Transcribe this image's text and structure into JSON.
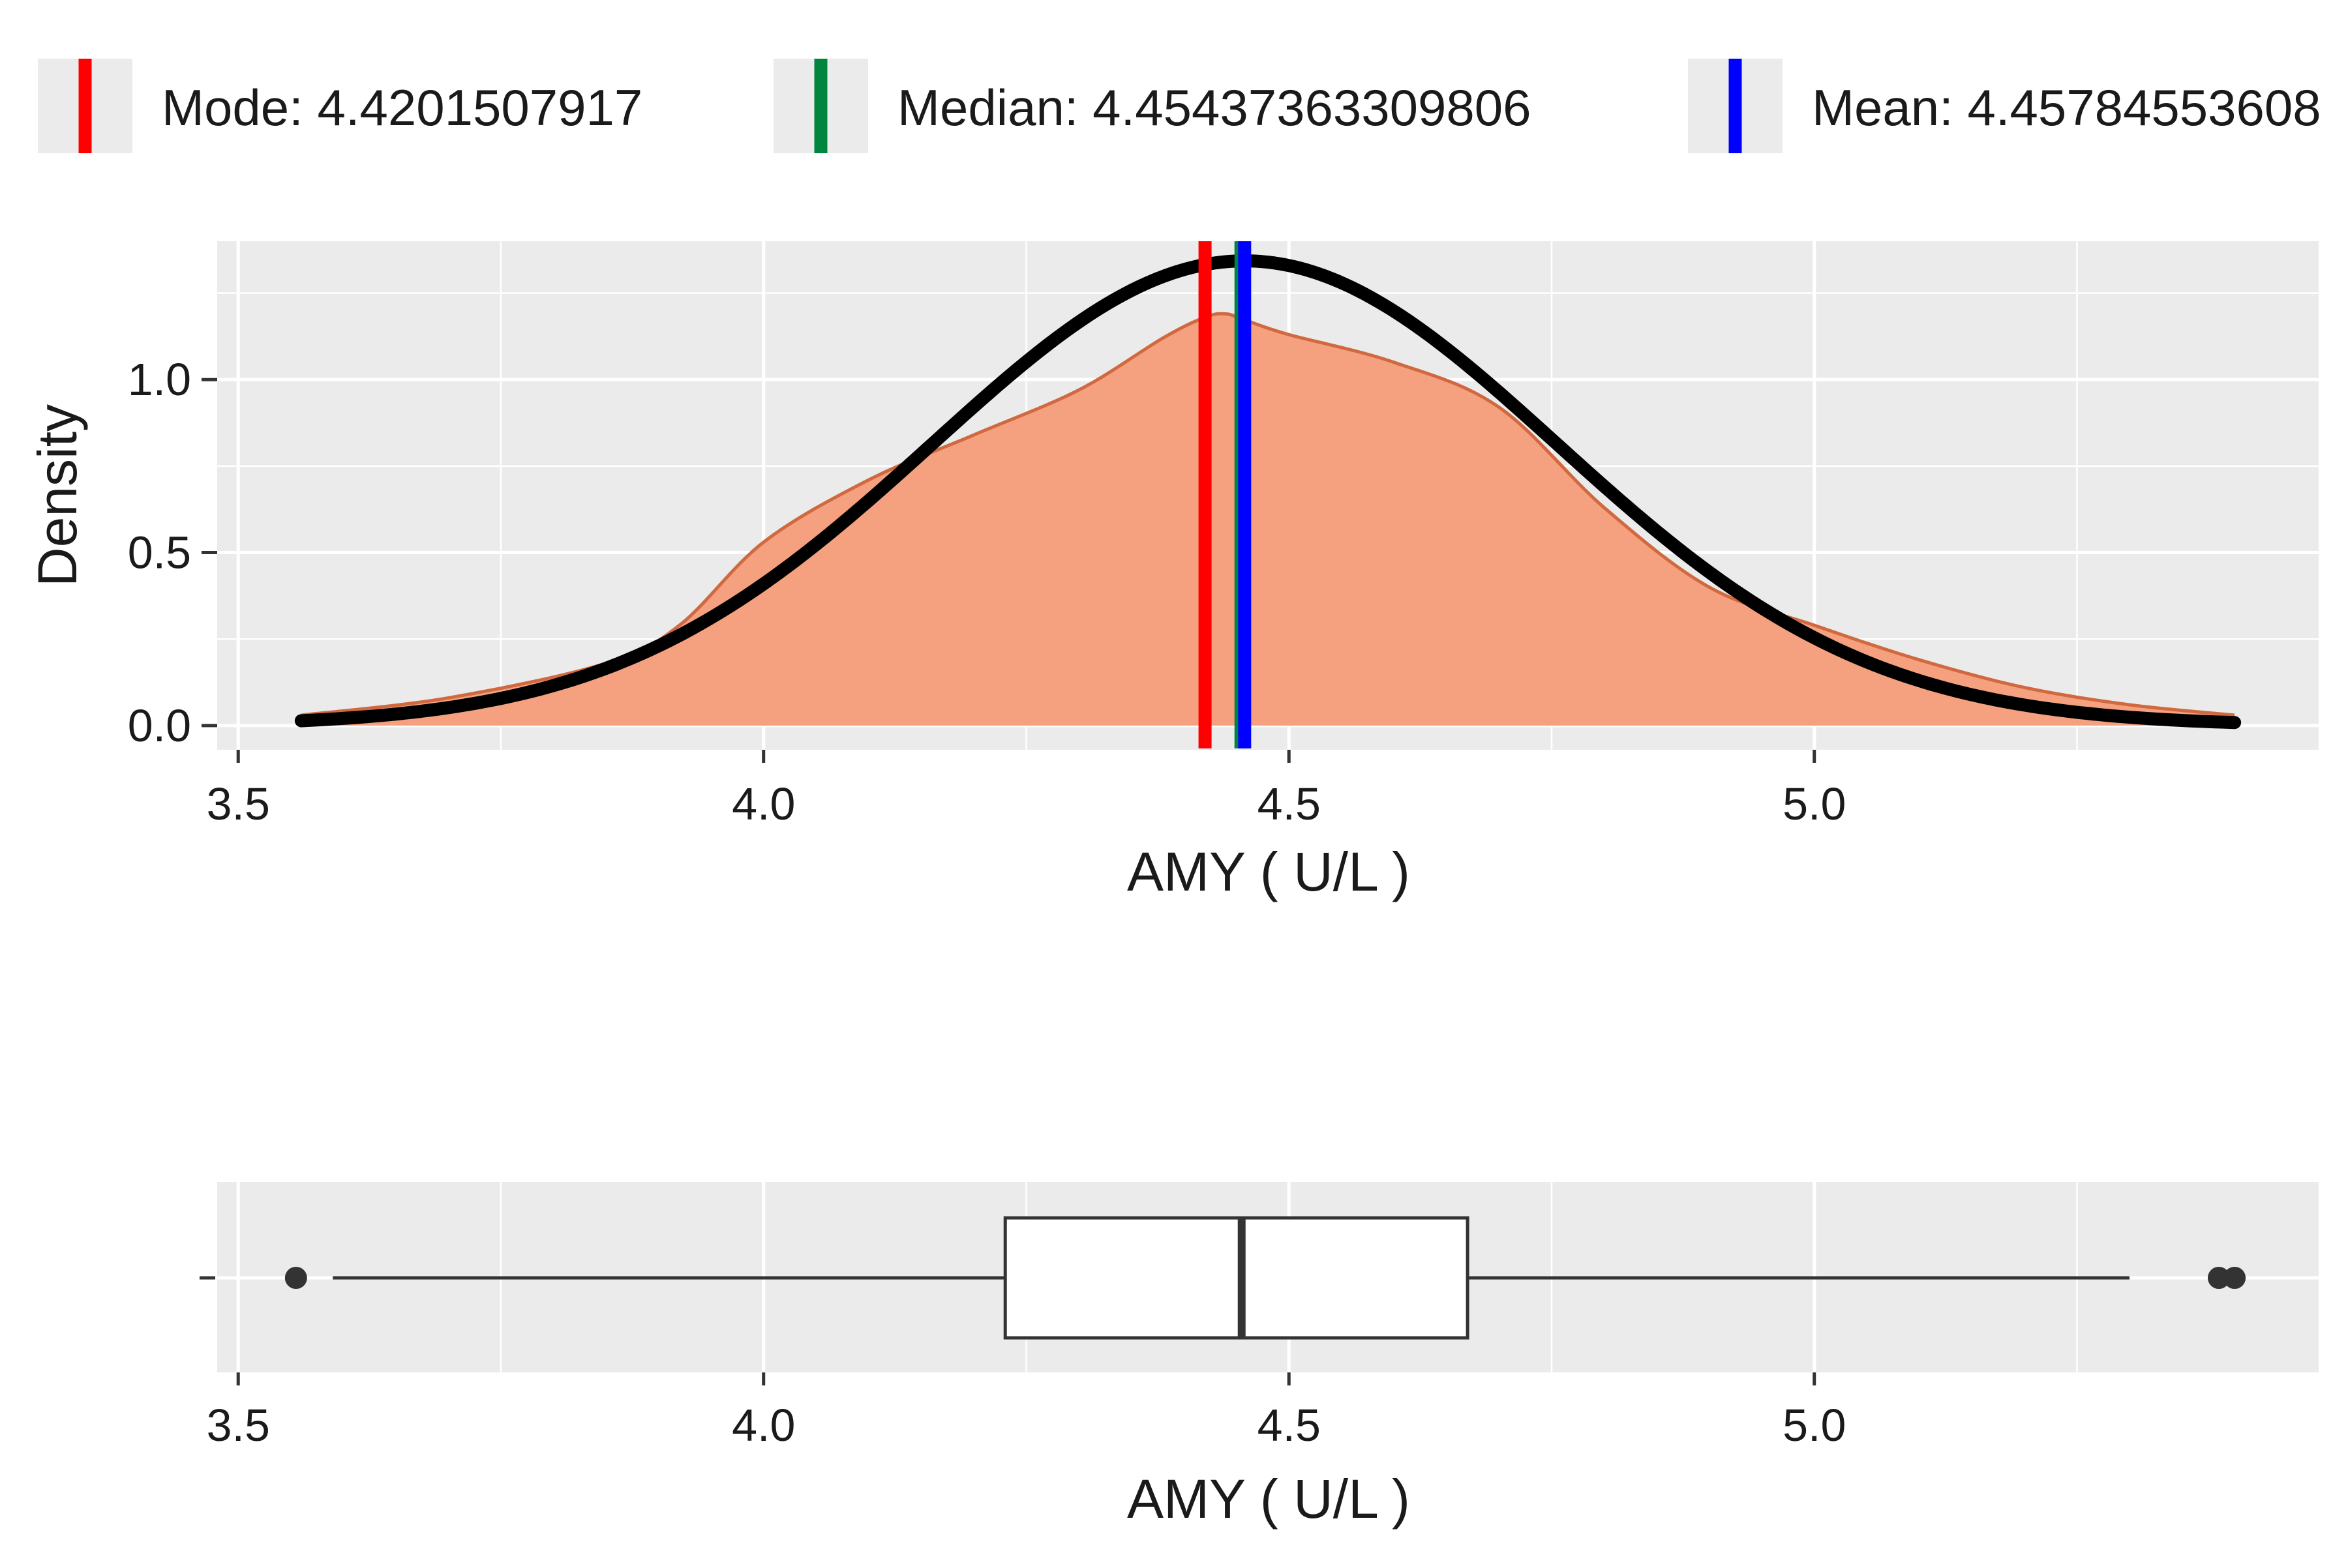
{
  "chart_data": [
    {
      "type": "area",
      "xlabel": "AMY ( U/L )",
      "ylabel": "Density",
      "xlim": [
        3.48,
        5.48
      ],
      "ylim": [
        -0.07,
        1.4
      ],
      "x_ticks": [
        3.5,
        4.0,
        4.5,
        5.0
      ],
      "x_tick_labels": [
        "3.5",
        "4.0",
        "4.5",
        "5.0"
      ],
      "y_ticks": [
        0.0,
        0.5,
        1.0
      ],
      "y_tick_labels": [
        "0.0",
        "0.5",
        "1.0"
      ],
      "grid": true,
      "legend_position": "top",
      "legend": [
        {
          "label": "Mode:  4.4201507917",
          "color": "#ff0000",
          "value": 4.4201507917
        },
        {
          "label": "Median:  4.45437363309806",
          "color": "#00853e",
          "value": 4.45437363309806
        },
        {
          "label": "Mean:  4.45784553608",
          "color": "#0000ff",
          "value": 4.45784553608
        }
      ],
      "kde_color": "#f5a07f",
      "kde_line_color": "#d0693f",
      "normal_curve": {
        "mean": 4.4578,
        "sd": 0.297,
        "color": "#000000"
      },
      "series": [
        {
          "x": [
            3.56,
            3.7,
            3.85,
            3.92,
            4.0,
            4.1,
            4.2,
            4.3,
            4.38,
            4.42,
            4.44,
            4.46,
            4.5,
            4.6,
            4.7,
            4.8,
            4.9,
            5.0,
            5.1,
            5.2,
            5.3,
            5.4
          ],
          "y": [
            0.03,
            0.08,
            0.18,
            0.29,
            0.53,
            0.71,
            0.84,
            0.97,
            1.12,
            1.18,
            1.19,
            1.17,
            1.13,
            1.05,
            0.92,
            0.63,
            0.4,
            0.29,
            0.19,
            0.11,
            0.06,
            0.03
          ]
        }
      ]
    },
    {
      "type": "box",
      "xlabel": "AMY ( U/L )",
      "xlim": [
        3.48,
        5.48
      ],
      "x_ticks": [
        3.5,
        4.0,
        4.5,
        5.0
      ],
      "x_tick_labels": [
        "3.5",
        "4.0",
        "4.5",
        "5.0"
      ],
      "whisker_low": 3.59,
      "q1": 4.23,
      "median": 4.455,
      "q3": 4.67,
      "whisker_high": 5.3,
      "outliers": [
        3.555,
        5.385,
        5.4
      ]
    }
  ]
}
